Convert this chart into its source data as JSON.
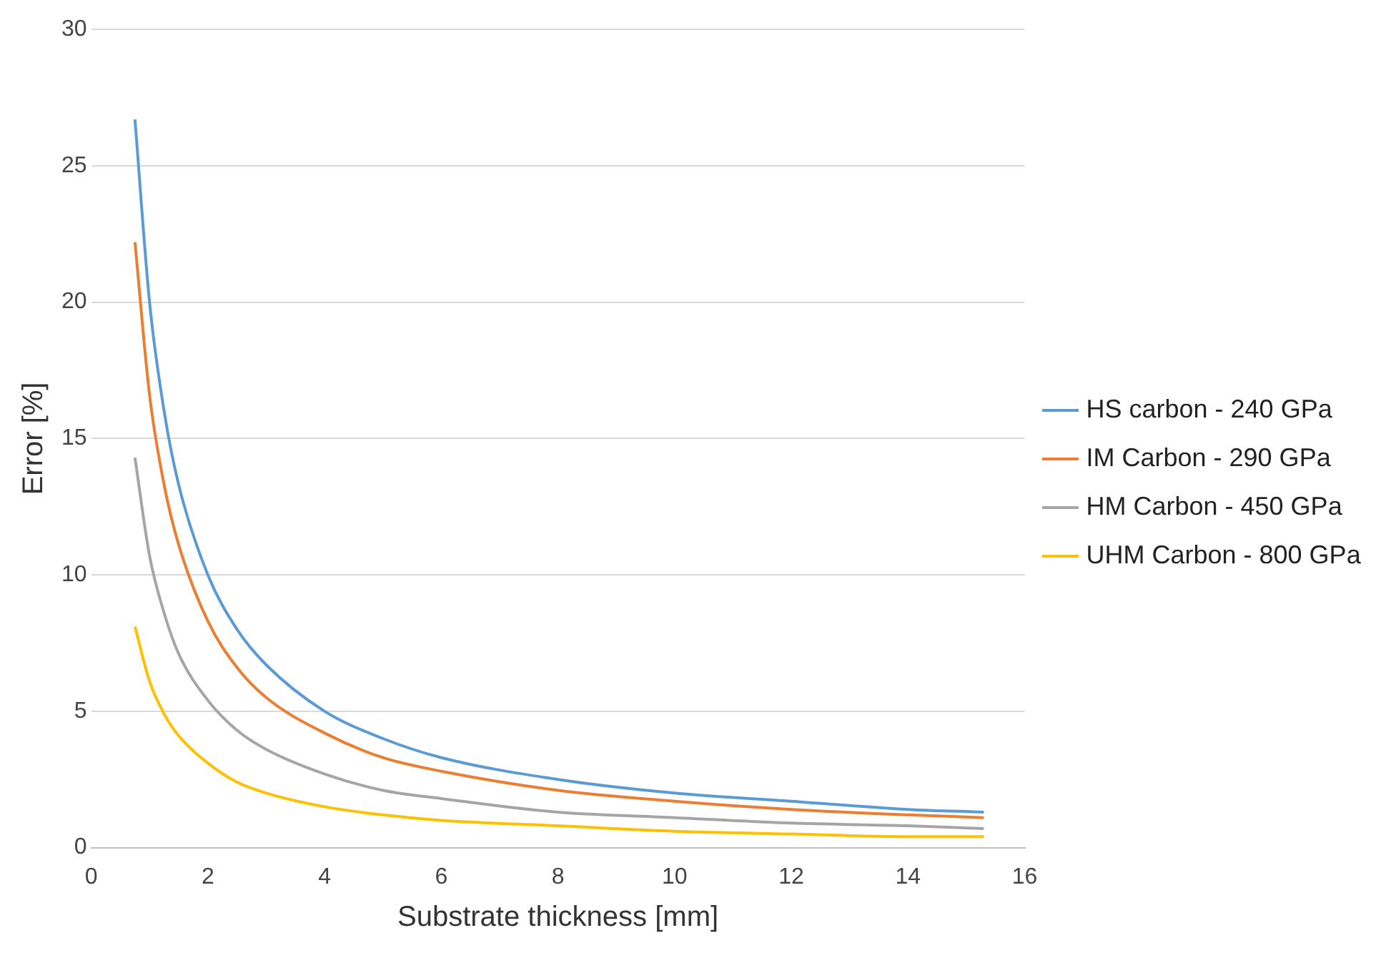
{
  "chart_data": {
    "type": "line",
    "xlabel": "Substrate thickness [mm]",
    "ylabel": "Error [%]",
    "xlim": [
      0,
      16
    ],
    "xticks": [
      0,
      2,
      4,
      6,
      8,
      10,
      12,
      14,
      16
    ],
    "ylim": [
      0,
      30
    ],
    "yticks": [
      0,
      5,
      10,
      15,
      20,
      25,
      30
    ],
    "grid": "y",
    "legend": "right",
    "marker": "none",
    "line_style": "solid",
    "x": [
      0.75,
      1,
      1.25,
      1.5,
      2,
      2.5,
      3,
      4,
      5,
      6,
      8,
      10,
      12,
      14,
      15.3
    ],
    "series": [
      {
        "name": "HS carbon - 240 GPa",
        "color": "#5b9bd5",
        "values": [
          26.7,
          20,
          16,
          13.3,
          10,
          8,
          6.7,
          5,
          4,
          3.3,
          2.5,
          2,
          1.7,
          1.4,
          1.3
        ]
      },
      {
        "name": "IM Carbon - 290 GPa",
        "color": "#ed7d31",
        "values": [
          22.2,
          16.6,
          13.3,
          11.1,
          8.3,
          6.6,
          5.5,
          4.2,
          3.3,
          2.8,
          2.1,
          1.7,
          1.4,
          1.2,
          1.1
        ]
      },
      {
        "name": "HM Carbon - 450 GPa",
        "color": "#a5a5a5",
        "values": [
          14.3,
          10.7,
          8.6,
          7.1,
          5.4,
          4.3,
          3.6,
          2.7,
          2.1,
          1.8,
          1.3,
          1.1,
          0.9,
          0.8,
          0.7
        ]
      },
      {
        "name": "UHM Carbon - 800 GPa",
        "color": "#ffc000",
        "values": [
          8.1,
          6.1,
          4.9,
          4.1,
          3.1,
          2.4,
          2.0,
          1.5,
          1.2,
          1.0,
          0.8,
          0.6,
          0.5,
          0.4,
          0.4
        ]
      }
    ]
  }
}
